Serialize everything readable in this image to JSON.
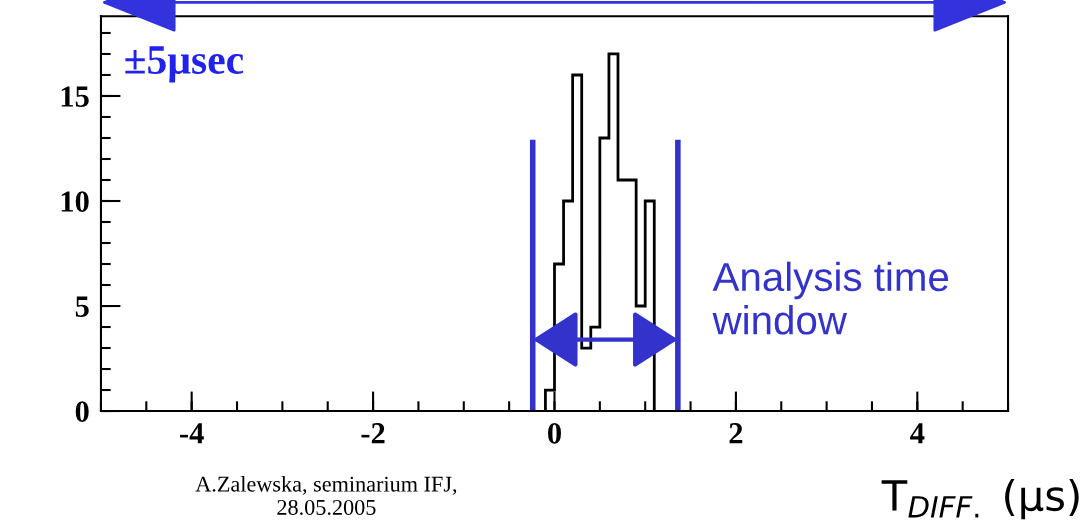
{
  "chart_data": {
    "type": "histogram",
    "xlabel": "T$_{DIFF.}$ (μs)",
    "bins": [
      -0.1,
      0.0,
      0.1,
      0.2,
      0.3,
      0.4,
      0.5,
      0.6,
      0.7,
      0.8,
      0.9,
      1.0,
      1.1
    ],
    "values": [
      1,
      7,
      10,
      16,
      3,
      4,
      13,
      17,
      11,
      11,
      5,
      10
    ],
    "color": "#000000",
    "xlim": [
      -5,
      5
    ],
    "xticks": [
      -4,
      -2,
      0,
      2,
      4
    ],
    "ylim": [
      0,
      18.8
    ],
    "yticks": [
      0,
      5,
      10,
      15
    ],
    "ref_lines": [
      {
        "axis": "x",
        "value": -0.24,
        "color": "#3333cc"
      },
      {
        "axis": "x",
        "value": 1.36,
        "color": "#3333cc"
      }
    ],
    "annotations": [
      "±5μsec",
      {
        "text": "Analysis time window",
        "x": 1.36,
        "y": 3.4
      },
      "A.Zalewska, seminarium IFJ,\n28.05.2005"
    ],
    "grid": false
  }
}
